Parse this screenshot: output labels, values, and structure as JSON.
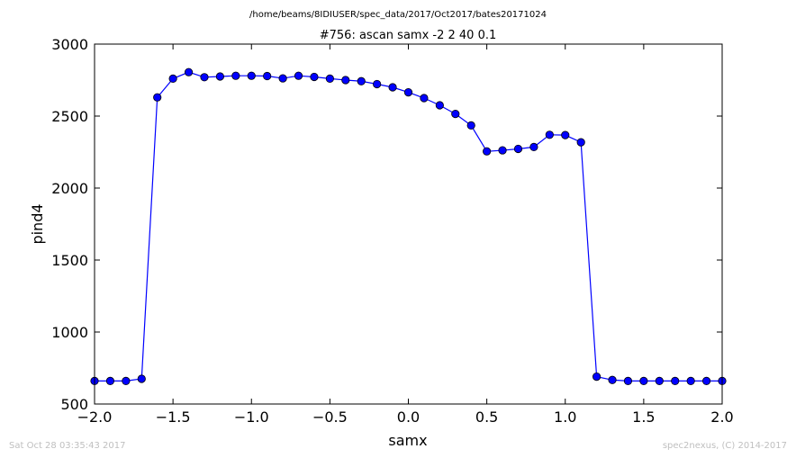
{
  "colors": {
    "series": "#0000ff",
    "axes": "#000000",
    "footer": "#bfbfbf",
    "background": "#ffffff"
  },
  "chart_data": {
    "type": "line",
    "suptitle": "/home/beams/8IDIUSER/spec_data/2017/Oct2017/bates20171024",
    "title": "#756: ascan  samx -2 2  40 0.1",
    "xlabel": "samx",
    "ylabel": "pind4",
    "xlim": [
      -2.0,
      2.0
    ],
    "ylim": [
      500,
      3000
    ],
    "xticks": [
      -2.0,
      -1.5,
      -1.0,
      -0.5,
      0.0,
      0.5,
      1.0,
      1.5,
      2.0
    ],
    "xtick_labels": [
      "−2.0",
      "−1.5",
      "−1.0",
      "−0.5",
      "0.0",
      "0.5",
      "1.0",
      "1.5",
      "2.0"
    ],
    "yticks": [
      500,
      1000,
      1500,
      2000,
      2500,
      3000
    ],
    "ytick_labels": [
      "500",
      "1000",
      "1500",
      "2000",
      "2500",
      "3000"
    ],
    "grid": false,
    "marker": "circle",
    "x": [
      -2.0,
      -1.9,
      -1.8,
      -1.7,
      -1.6,
      -1.5,
      -1.4,
      -1.3,
      -1.2,
      -1.1,
      -1.0,
      -0.9,
      -0.8,
      -0.7,
      -0.6,
      -0.5,
      -0.4,
      -0.3,
      -0.2,
      -0.1,
      0.0,
      0.1,
      0.2,
      0.3,
      0.4,
      0.5,
      0.6,
      0.7,
      0.8,
      0.9,
      1.0,
      1.1,
      1.2,
      1.3,
      1.4,
      1.5,
      1.6,
      1.7,
      1.8,
      1.9,
      2.0
    ],
    "series": [
      {
        "values": [
          660,
          660,
          660,
          675,
          2630,
          2760,
          2805,
          2770,
          2775,
          2780,
          2780,
          2778,
          2762,
          2780,
          2772,
          2760,
          2750,
          2742,
          2722,
          2700,
          2665,
          2625,
          2575,
          2515,
          2435,
          2255,
          2262,
          2272,
          2285,
          2370,
          2368,
          2318,
          690,
          667,
          660,
          660,
          660,
          660,
          660,
          660,
          660
        ]
      }
    ]
  },
  "footer": {
    "timestamp": "Sat Oct 28 03:35:43 2017",
    "credit": "spec2nexus, (C) 2014-2017"
  }
}
